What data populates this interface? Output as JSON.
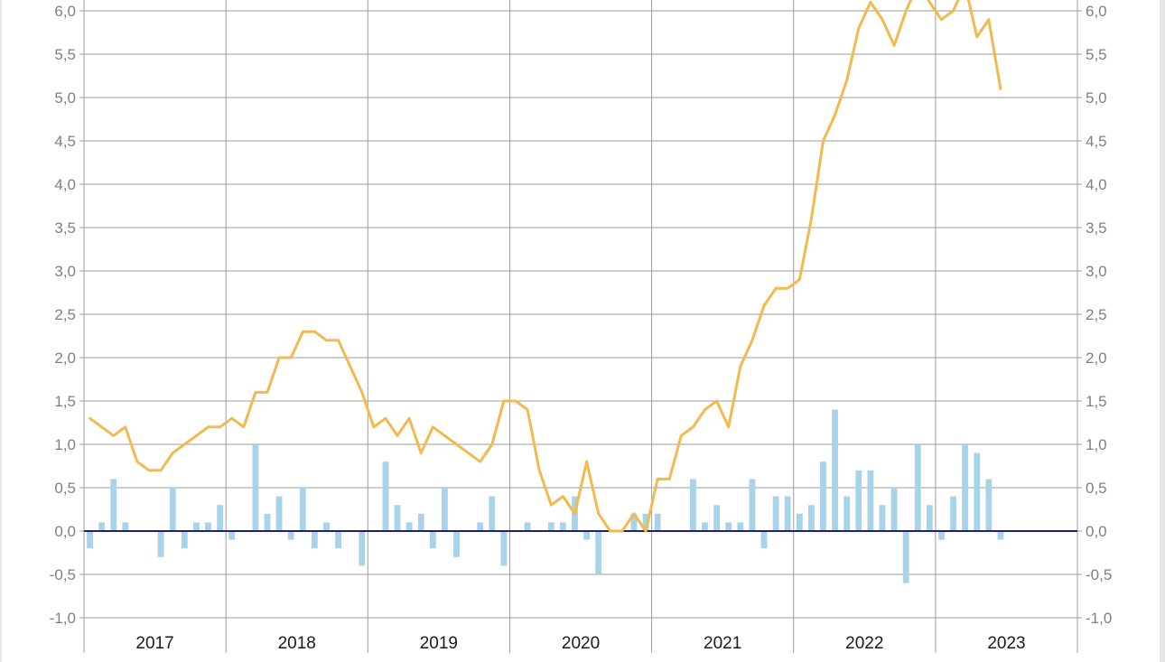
{
  "colors": {
    "line": "#f2b94f",
    "bars": "#a9d3e8",
    "grid": "#9e9e9e",
    "zero_line": "#1f1f7a",
    "tick_text": "#7f7f7f",
    "year_text": "#1a1a1a"
  },
  "chart_data": {
    "type": "bar+line",
    "x_axis": {
      "kind": "monthly",
      "first_month": "2017-01",
      "year_labels": [
        "2017",
        "2018",
        "2019",
        "2020",
        "2021",
        "2022",
        "2023"
      ]
    },
    "y_left": {
      "ylim": [
        -1.0,
        6.0
      ],
      "ticks": [
        "-1,0",
        "-0,5",
        "0,0",
        "0,5",
        "1,0",
        "1,5",
        "2,0",
        "2,5",
        "3,0",
        "3,5",
        "4,0",
        "4,5",
        "5,0",
        "5,5",
        "6,0"
      ]
    },
    "y_right": {
      "ylim": [
        -1.0,
        6.0
      ],
      "ticks": [
        "-1,0",
        "-0,5",
        "0,0",
        "0,5",
        "1,0",
        "1,5",
        "2,0",
        "2,5",
        "3,0",
        "3,5",
        "4,0",
        "4,5",
        "5,0",
        "5,5",
        "6,0"
      ]
    },
    "grid": true,
    "series": [
      {
        "type": "bar",
        "values": [
          -0.2,
          0.1,
          0.6,
          0.1,
          0,
          0,
          -0.3,
          0.5,
          -0.2,
          0.1,
          0.1,
          0.3,
          -0.1,
          0,
          1.0,
          0.2,
          0.4,
          -0.1,
          0.5,
          -0.2,
          0.1,
          -0.2,
          0,
          -0.4,
          0,
          0.8,
          0.3,
          0.1,
          0.2,
          -0.2,
          0.5,
          -0.3,
          0,
          0.1,
          0.4,
          -0.4,
          0,
          0.1,
          0,
          0.1,
          0.1,
          0.4,
          -0.1,
          -0.5,
          0,
          0,
          0.2,
          0.2,
          0.2,
          0,
          0,
          0.6,
          0.1,
          0.3,
          0.1,
          0.1,
          0.6,
          -0.2,
          0.4,
          0.4,
          0.2,
          0.3,
          0.8,
          1.4,
          0.4,
          0.7,
          0.7,
          0.3,
          0.5,
          -0.6,
          1.0,
          0.3,
          -0.1,
          0.4,
          1.0,
          0.9,
          0.6,
          -0.1
        ]
      },
      {
        "type": "line",
        "values": [
          1.3,
          1.2,
          1.1,
          1.2,
          0.8,
          0.7,
          0.7,
          0.9,
          1.0,
          1.1,
          1.2,
          1.2,
          1.3,
          1.2,
          1.6,
          1.6,
          2.0,
          2.0,
          2.3,
          2.3,
          2.2,
          2.2,
          1.9,
          1.6,
          1.2,
          1.3,
          1.1,
          1.3,
          0.9,
          1.2,
          1.1,
          1.0,
          0.9,
          0.8,
          1.0,
          1.5,
          1.5,
          1.4,
          0.7,
          0.3,
          0.4,
          0.2,
          0.8,
          0.2,
          0.0,
          0.0,
          0.2,
          0.0,
          0.6,
          0.6,
          1.1,
          1.2,
          1.4,
          1.5,
          1.2,
          1.9,
          2.2,
          2.6,
          2.8,
          2.8,
          2.9,
          3.6,
          4.5,
          4.8,
          5.2,
          5.8,
          6.1,
          5.9,
          5.6,
          6.0,
          6.3,
          6.1,
          5.9,
          6.0,
          6.3,
          5.7,
          5.9,
          5.1
        ]
      }
    ]
  }
}
